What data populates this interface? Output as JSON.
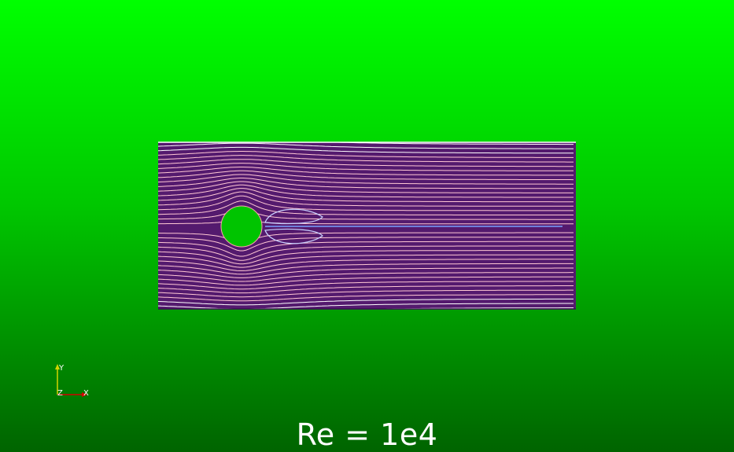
{
  "caption": "Re = 1e4",
  "orientation_axes": {
    "y_label": "Y",
    "x_label": "X",
    "z_label": "Z",
    "y_color": "#d4d400",
    "x_color": "#d40000",
    "z_color": "#ffffff"
  },
  "colors": {
    "background_top": "#00ff00",
    "background_bottom": "#006400",
    "domain_fill": "#541a6e",
    "streamline_far": "#ffffff",
    "streamline_near": "#ff9fb0",
    "wake_line": "#7aa0ff",
    "obstacle": "#00c400"
  }
}
